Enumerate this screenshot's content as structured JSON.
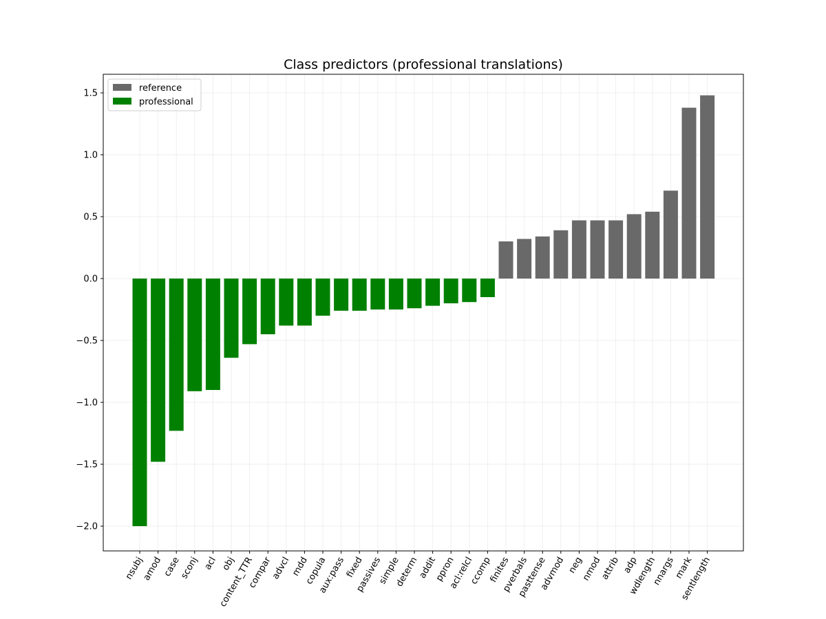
{
  "chart_data": {
    "type": "bar",
    "title": "Class predictors (professional translations)",
    "xlabel": "",
    "ylabel": "",
    "ylim": [
      -2.2,
      1.65
    ],
    "yticks": [
      -2.0,
      -1.5,
      -1.0,
      -0.5,
      0.0,
      0.5,
      1.0,
      1.5
    ],
    "ytick_labels": [
      "−2.0",
      "−1.5",
      "−1.0",
      "−0.5",
      "0.0",
      "0.5",
      "1.0",
      "1.5"
    ],
    "grid": true,
    "legend_position": "top-left",
    "legend": [
      {
        "label": "reference",
        "color": "#696969"
      },
      {
        "label": "professional",
        "color": "#008000"
      }
    ],
    "categories": [
      "nsubj",
      "amod",
      "case",
      "sconj",
      "acl",
      "obj",
      "content_TTR",
      "compar",
      "advcl",
      "mdd",
      "copula",
      "aux:pass",
      "fixed",
      "passives",
      "simple",
      "determ",
      "addit",
      "ppron",
      "acl:relcl",
      "ccomp",
      "finites",
      "pverbals",
      "pasttense",
      "advmod",
      "neg",
      "nmod",
      "attrib",
      "adp",
      "wdlength",
      "nnargs",
      "mark",
      "sentlength"
    ],
    "values": [
      -2.0,
      -1.48,
      -1.23,
      -0.91,
      -0.9,
      -0.64,
      -0.53,
      -0.45,
      -0.38,
      -0.38,
      -0.3,
      -0.26,
      -0.26,
      -0.25,
      -0.25,
      -0.24,
      -0.22,
      -0.2,
      -0.19,
      -0.15,
      0.3,
      0.32,
      0.34,
      0.39,
      0.47,
      0.47,
      0.47,
      0.52,
      0.54,
      0.71,
      1.38,
      1.48
    ],
    "series_by_bar": [
      "professional",
      "professional",
      "professional",
      "professional",
      "professional",
      "professional",
      "professional",
      "professional",
      "professional",
      "professional",
      "professional",
      "professional",
      "professional",
      "professional",
      "professional",
      "professional",
      "professional",
      "professional",
      "professional",
      "professional",
      "reference",
      "reference",
      "reference",
      "reference",
      "reference",
      "reference",
      "reference",
      "reference",
      "reference",
      "reference",
      "reference",
      "reference"
    ]
  }
}
